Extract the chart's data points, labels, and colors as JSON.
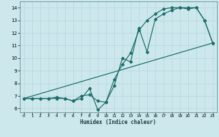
{
  "title": "",
  "xlabel": "Humidex (Indice chaleur)",
  "xlim": [
    -0.5,
    23.5
  ],
  "ylim": [
    5.7,
    14.5
  ],
  "yticks": [
    6,
    7,
    8,
    9,
    10,
    11,
    12,
    13,
    14
  ],
  "xticks": [
    0,
    1,
    2,
    3,
    4,
    5,
    6,
    7,
    8,
    9,
    10,
    11,
    12,
    13,
    14,
    15,
    16,
    17,
    18,
    19,
    20,
    21,
    22,
    23
  ],
  "bg_color": "#cce8ed",
  "grid_color": "#b8d8dd",
  "line_color": "#1e6e6a",
  "line1": {
    "x": [
      0,
      1,
      2,
      3,
      4,
      5,
      6,
      7,
      8,
      9,
      10,
      11,
      12,
      13,
      14,
      15,
      16,
      17,
      18,
      19,
      20,
      21,
      22,
      23
    ],
    "y": [
      6.8,
      6.8,
      6.8,
      6.8,
      6.8,
      6.8,
      6.6,
      6.8,
      7.6,
      5.9,
      6.5,
      7.8,
      10.0,
      9.7,
      12.4,
      10.5,
      13.1,
      13.5,
      13.8,
      14.0,
      13.9,
      14.0,
      13.0,
      11.2
    ]
  },
  "line2": {
    "x": [
      0,
      1,
      2,
      3,
      4,
      5,
      6,
      7,
      8,
      9,
      10,
      11,
      12,
      13,
      14,
      15,
      16,
      17,
      18,
      19,
      20,
      21,
      22,
      23
    ],
    "y": [
      6.8,
      6.8,
      6.8,
      6.8,
      6.9,
      6.8,
      6.6,
      7.0,
      7.1,
      6.6,
      6.5,
      8.3,
      9.5,
      10.4,
      12.2,
      13.0,
      13.5,
      13.9,
      14.0,
      14.0,
      14.0,
      14.0,
      13.0,
      11.2
    ]
  },
  "line3": {
    "x": [
      0,
      23
    ],
    "y": [
      6.8,
      11.2
    ]
  }
}
